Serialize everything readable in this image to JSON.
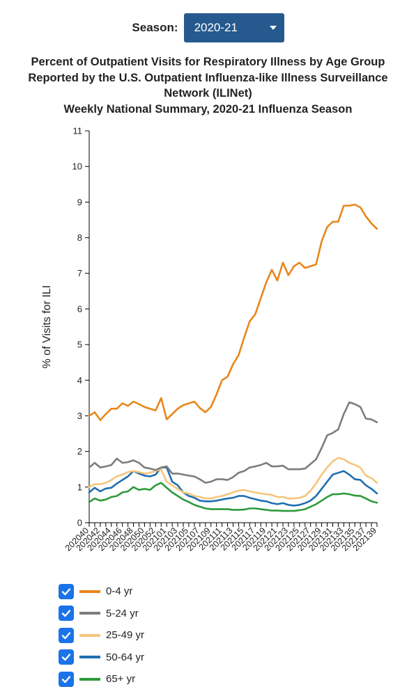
{
  "season": {
    "label": "Season:",
    "selected": "2020-21"
  },
  "title_lines": [
    "Percent of Outpatient Visits for Respiratory Illness by Age Group",
    "Reported by the U.S. Outpatient Influenza-like Illness Surveillance",
    "Network (ILINet)",
    "Weekly National Summary, 2020-21 Influenza Season"
  ],
  "legend": [
    {
      "label": "0-4 yr",
      "color": "#e8861a",
      "checked": true
    },
    {
      "label": "5-24 yr",
      "color": "#7d7d7d",
      "checked": true
    },
    {
      "label": "25-49 yr",
      "color": "#f6c57b",
      "checked": true
    },
    {
      "label": "50-64 yr",
      "color": "#1f6fb0",
      "checked": true
    },
    {
      "label": "65+ yr",
      "color": "#2e9a3a",
      "checked": true
    }
  ],
  "chart_data": {
    "type": "line",
    "title": "Percent of Outpatient Visits for Respiratory Illness by Age Group Reported by the U.S. Outpatient Influenza-like Illness Surveillance Network (ILINet) Weekly National Summary, 2020-21 Influenza Season",
    "xlabel": "",
    "ylabel": "% of Visits for ILI",
    "ylim": [
      0,
      11
    ],
    "yticks": [
      0,
      1,
      2,
      3,
      4,
      5,
      6,
      7,
      8,
      9,
      10,
      11
    ],
    "grid": false,
    "legend_position": "bottom",
    "x": [
      "202040",
      "202041",
      "202042",
      "202043",
      "202044",
      "202045",
      "202046",
      "202047",
      "202048",
      "202049",
      "202050",
      "202051",
      "202052",
      "202053",
      "202101",
      "202102",
      "202103",
      "202104",
      "202105",
      "202106",
      "202107",
      "202108",
      "202109",
      "202110",
      "202111",
      "202112",
      "202113",
      "202114",
      "202115",
      "202116",
      "202117",
      "202118",
      "202119",
      "202120",
      "202121",
      "202122",
      "202123",
      "202124",
      "202125",
      "202126",
      "202127",
      "202128",
      "202129",
      "202130",
      "202131",
      "202132",
      "202133",
      "202134",
      "202135",
      "202136",
      "202137",
      "202138",
      "202139"
    ],
    "x_tick_labels": [
      "202040",
      "202042",
      "202044",
      "202046",
      "202048",
      "202050",
      "202052",
      "202101",
      "202103",
      "202105",
      "202107",
      "202109",
      "202111",
      "202113",
      "202115",
      "202117",
      "202119",
      "202121",
      "202123",
      "202125",
      "202127",
      "202129",
      "202131",
      "202133",
      "202135",
      "202137",
      "202139"
    ],
    "series": [
      {
        "name": "0-4 yr",
        "color": "#e8861a",
        "values": [
          3.0,
          3.1,
          2.88,
          3.05,
          3.2,
          3.2,
          3.35,
          3.28,
          3.4,
          3.33,
          3.25,
          3.2,
          3.15,
          3.5,
          2.9,
          3.05,
          3.2,
          3.3,
          3.35,
          3.4,
          3.22,
          3.1,
          3.25,
          3.6,
          4.0,
          4.1,
          4.45,
          4.7,
          5.2,
          5.65,
          5.85,
          6.3,
          6.75,
          7.1,
          6.8,
          7.3,
          6.95,
          7.2,
          7.3,
          7.15,
          7.2,
          7.25,
          7.9,
          8.3,
          8.45,
          8.45,
          8.9,
          8.9,
          8.93,
          8.85,
          8.6,
          8.4,
          8.25
        ]
      },
      {
        "name": "5-24 yr",
        "color": "#7d7d7d",
        "values": [
          1.55,
          1.68,
          1.55,
          1.58,
          1.62,
          1.8,
          1.68,
          1.7,
          1.75,
          1.68,
          1.55,
          1.52,
          1.48,
          1.55,
          1.58,
          1.38,
          1.38,
          1.35,
          1.32,
          1.3,
          1.22,
          1.12,
          1.15,
          1.22,
          1.22,
          1.2,
          1.28,
          1.4,
          1.45,
          1.55,
          1.58,
          1.62,
          1.68,
          1.58,
          1.58,
          1.6,
          1.5,
          1.5,
          1.5,
          1.52,
          1.65,
          1.78,
          2.1,
          2.45,
          2.52,
          2.62,
          3.05,
          3.38,
          3.33,
          3.25,
          2.92,
          2.9,
          2.82
        ]
      },
      {
        "name": "25-49 yr",
        "color": "#f6c57b",
        "values": [
          1.0,
          1.08,
          1.08,
          1.12,
          1.2,
          1.3,
          1.35,
          1.42,
          1.45,
          1.42,
          1.38,
          1.4,
          1.45,
          1.5,
          1.15,
          1.05,
          0.95,
          0.85,
          0.82,
          0.75,
          0.72,
          0.68,
          0.68,
          0.72,
          0.75,
          0.8,
          0.85,
          0.9,
          0.92,
          0.88,
          0.85,
          0.82,
          0.8,
          0.78,
          0.72,
          0.72,
          0.68,
          0.68,
          0.7,
          0.75,
          0.9,
          1.1,
          1.35,
          1.55,
          1.72,
          1.82,
          1.78,
          1.68,
          1.62,
          1.55,
          1.32,
          1.25,
          1.12
        ]
      },
      {
        "name": "50-64 yr",
        "color": "#1f6fb0",
        "values": [
          0.85,
          0.98,
          0.88,
          0.96,
          0.98,
          1.1,
          1.2,
          1.3,
          1.45,
          1.38,
          1.32,
          1.3,
          1.35,
          1.55,
          1.55,
          1.15,
          1.05,
          0.85,
          0.75,
          0.7,
          0.62,
          0.6,
          0.6,
          0.62,
          0.65,
          0.68,
          0.7,
          0.75,
          0.75,
          0.7,
          0.66,
          0.62,
          0.6,
          0.55,
          0.52,
          0.55,
          0.5,
          0.48,
          0.5,
          0.55,
          0.62,
          0.75,
          0.95,
          1.15,
          1.35,
          1.4,
          1.45,
          1.35,
          1.22,
          1.2,
          1.05,
          0.95,
          0.82
        ]
      },
      {
        "name": "65+ yr",
        "color": "#2e9a3a",
        "values": [
          0.58,
          0.68,
          0.62,
          0.65,
          0.72,
          0.75,
          0.85,
          0.88,
          1.0,
          0.92,
          0.95,
          0.92,
          1.05,
          1.12,
          0.98,
          0.85,
          0.75,
          0.65,
          0.58,
          0.5,
          0.45,
          0.4,
          0.38,
          0.38,
          0.38,
          0.38,
          0.36,
          0.36,
          0.37,
          0.4,
          0.4,
          0.38,
          0.36,
          0.34,
          0.34,
          0.33,
          0.33,
          0.33,
          0.35,
          0.38,
          0.45,
          0.52,
          0.62,
          0.72,
          0.8,
          0.8,
          0.82,
          0.8,
          0.76,
          0.75,
          0.68,
          0.6,
          0.56
        ]
      }
    ]
  }
}
